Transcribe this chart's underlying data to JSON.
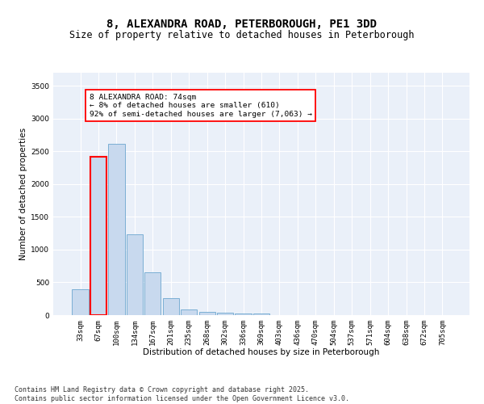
{
  "title": "8, ALEXANDRA ROAD, PETERBOROUGH, PE1 3DD",
  "subtitle": "Size of property relative to detached houses in Peterborough",
  "xlabel": "Distribution of detached houses by size in Peterborough",
  "ylabel": "Number of detached properties",
  "categories": [
    "33sqm",
    "67sqm",
    "100sqm",
    "134sqm",
    "167sqm",
    "201sqm",
    "235sqm",
    "268sqm",
    "302sqm",
    "336sqm",
    "369sqm",
    "403sqm",
    "436sqm",
    "470sqm",
    "504sqm",
    "537sqm",
    "571sqm",
    "604sqm",
    "638sqm",
    "672sqm",
    "705sqm"
  ],
  "values": [
    390,
    2420,
    2610,
    1230,
    650,
    260,
    90,
    55,
    40,
    30,
    20,
    5,
    3,
    2,
    1,
    0,
    0,
    0,
    0,
    0,
    0
  ],
  "bar_color": "#c8d9ee",
  "bar_edge_color": "#7bafd4",
  "highlight_bar_index": 1,
  "highlight_edge_color": "red",
  "annotation_text": "8 ALEXANDRA ROAD: 74sqm\n← 8% of detached houses are smaller (610)\n92% of semi-detached houses are larger (7,063) →",
  "annotation_box_color": "white",
  "annotation_box_edge_color": "red",
  "ylim": [
    0,
    3700
  ],
  "yticks": [
    0,
    500,
    1000,
    1500,
    2000,
    2500,
    3000,
    3500
  ],
  "bg_color": "#eaf0f9",
  "grid_color": "white",
  "footer": "Contains HM Land Registry data © Crown copyright and database right 2025.\nContains public sector information licensed under the Open Government Licence v3.0.",
  "title_fontsize": 10,
  "subtitle_fontsize": 8.5,
  "axis_label_fontsize": 7.5,
  "tick_fontsize": 6.5,
  "annotation_fontsize": 6.8,
  "footer_fontsize": 6.0
}
